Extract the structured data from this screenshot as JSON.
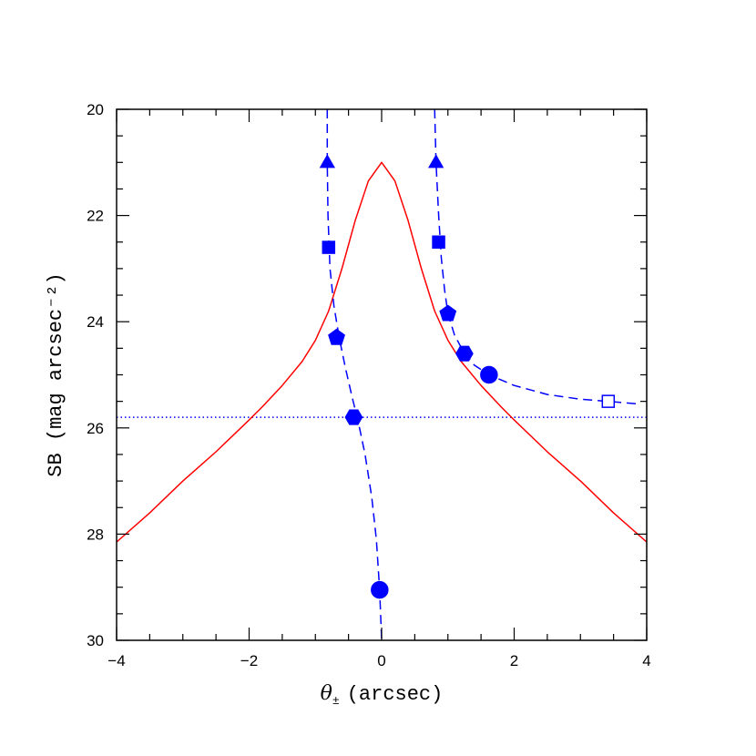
{
  "chart_data": {
    "type": "line",
    "xlabel": "(arcsec)",
    "xlabel_symbol": "θ",
    "xlabel_subscript": "±",
    "ylabel": "SB  (mag arcsec⁻²)",
    "xlim": [
      -4,
      4
    ],
    "ylim": [
      20,
      30
    ],
    "y_inverted": true,
    "xticks": [
      "−4",
      "−2",
      "0",
      "2",
      "4"
    ],
    "yticks": [
      "20",
      "22",
      "24",
      "26",
      "28",
      "30"
    ],
    "colors": {
      "profile": "#ff0000",
      "tracks": "#0000ff",
      "threshold": "#0000ff"
    },
    "series": [
      {
        "style": "solid",
        "color": "#ff0000",
        "x": [
          -4.0,
          -3.5,
          -3.0,
          -2.5,
          -2.0,
          -1.8,
          -1.5,
          -1.2,
          -1.0,
          -0.8,
          -0.6,
          -0.4,
          -0.2,
          0.0,
          0.2,
          0.4,
          0.6,
          0.8,
          1.0,
          1.2,
          1.5,
          1.8,
          2.0,
          2.5,
          3.0,
          3.5,
          4.0
        ],
        "y": [
          28.15,
          27.6,
          27.0,
          26.45,
          25.85,
          25.6,
          25.2,
          24.75,
          24.35,
          23.8,
          23.0,
          22.1,
          21.35,
          21.0,
          21.35,
          22.1,
          23.0,
          23.8,
          24.35,
          24.75,
          25.2,
          25.6,
          25.85,
          26.45,
          27.0,
          27.6,
          28.15
        ]
      },
      {
        "style": "dashed",
        "color": "#0000ff",
        "x": [
          -0.82,
          -0.82,
          -0.81,
          -0.78,
          -0.72,
          -0.64,
          -0.55,
          -0.45,
          -0.35,
          -0.25,
          -0.15,
          -0.08,
          -0.03,
          0.0
        ],
        "y": [
          20.0,
          21.0,
          22.0,
          23.0,
          23.7,
          24.3,
          24.85,
          25.4,
          25.9,
          26.5,
          27.3,
          28.1,
          29.05,
          30.0
        ]
      },
      {
        "style": "dashed",
        "color": "#0000ff",
        "x": [
          0.8,
          0.82,
          0.86,
          0.9,
          0.95,
          1.0,
          1.1,
          1.25,
          1.4,
          1.62,
          2.0,
          2.5,
          3.0,
          3.42,
          3.9
        ],
        "y": [
          20.0,
          21.0,
          22.0,
          22.8,
          23.4,
          23.85,
          24.25,
          24.6,
          24.82,
          25.0,
          25.2,
          25.37,
          25.46,
          25.5,
          25.55
        ]
      }
    ],
    "reference_lines": [
      {
        "y": 25.8,
        "style": "dotted",
        "color": "#0000ff"
      }
    ],
    "markers": [
      {
        "shape": "triangle",
        "filled": true,
        "x": -0.82,
        "y": 21.0
      },
      {
        "shape": "triangle",
        "filled": true,
        "x": 0.82,
        "y": 21.0
      },
      {
        "shape": "square",
        "filled": true,
        "x": -0.8,
        "y": 22.6
      },
      {
        "shape": "square",
        "filled": true,
        "x": 0.86,
        "y": 22.5
      },
      {
        "shape": "pentagon",
        "filled": true,
        "x": -0.68,
        "y": 24.3
      },
      {
        "shape": "pentagon",
        "filled": true,
        "x": 1.0,
        "y": 23.85
      },
      {
        "shape": "hexagon",
        "filled": true,
        "x": -0.42,
        "y": 25.8
      },
      {
        "shape": "hexagon",
        "filled": true,
        "x": 1.25,
        "y": 24.6
      },
      {
        "shape": "circle",
        "filled": true,
        "x": 1.62,
        "y": 25.0
      },
      {
        "shape": "circle",
        "filled": true,
        "x": -0.03,
        "y": 29.05
      },
      {
        "shape": "square",
        "filled": false,
        "x": 3.42,
        "y": 25.5
      }
    ]
  }
}
